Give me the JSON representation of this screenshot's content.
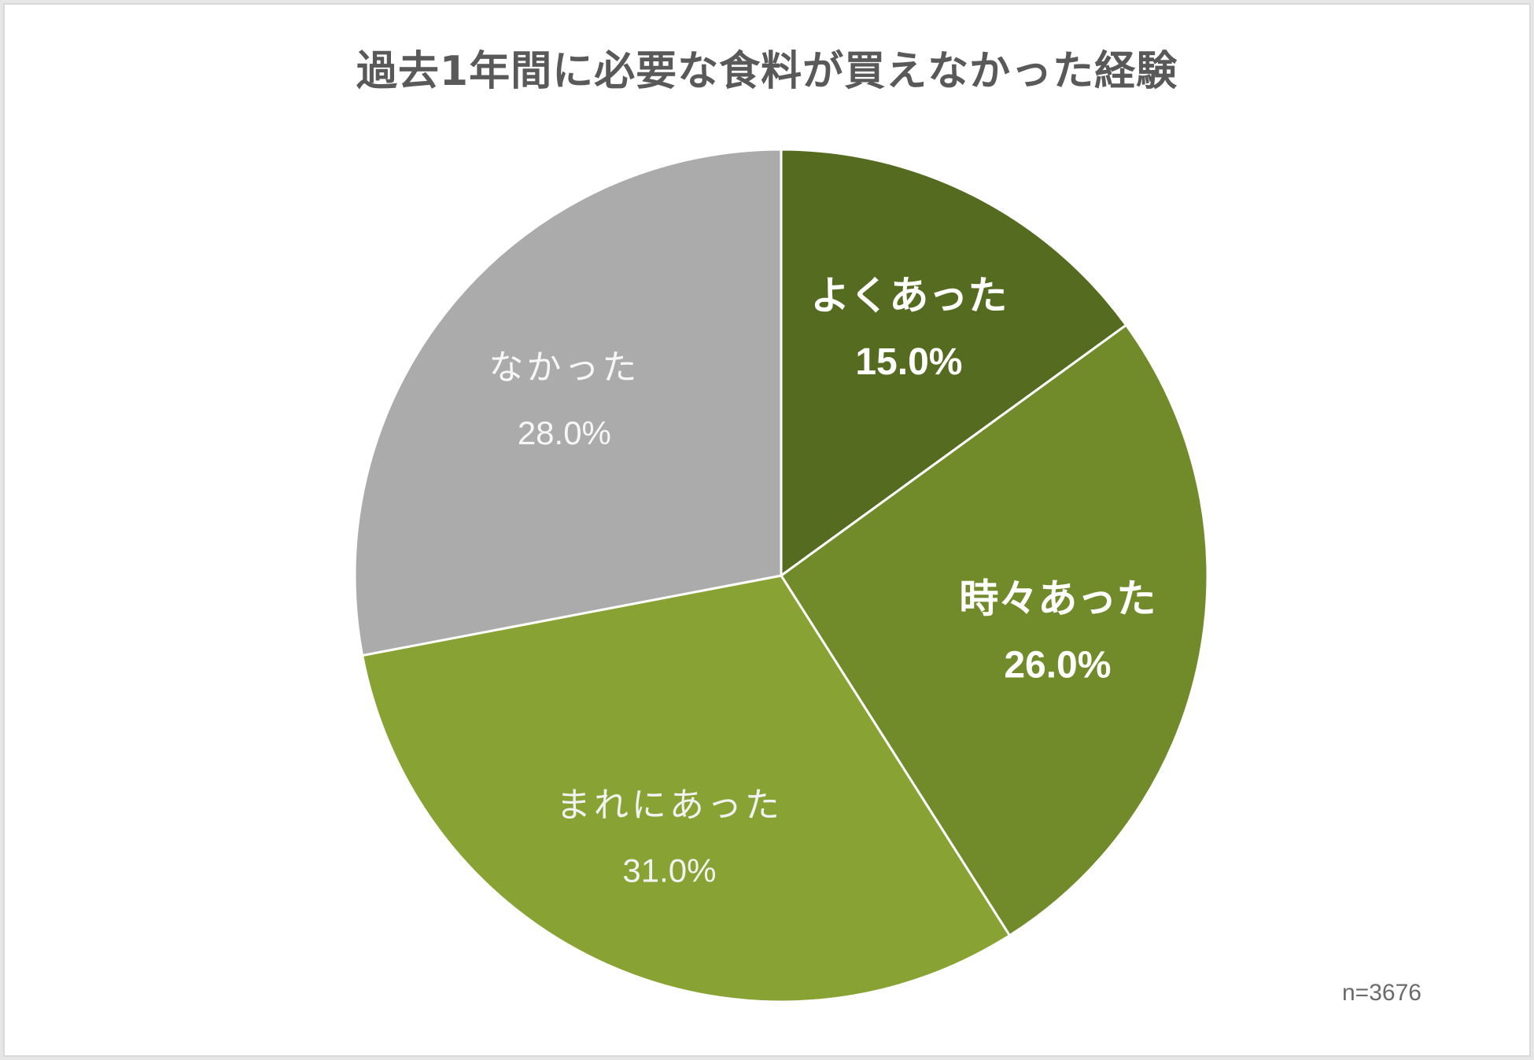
{
  "chart_data": {
    "type": "pie",
    "title": "過去1年間に必要な食料が買えなかった経験",
    "slices": [
      {
        "label": "よくあった",
        "value": 15.0,
        "value_label": "15.0%",
        "color": "#556b20",
        "text_color": "#ffffff",
        "bold": true
      },
      {
        "label": "時々あった",
        "value": 26.0,
        "value_label": "26.0%",
        "color": "#718b2a",
        "text_color": "#ffffff",
        "bold": true
      },
      {
        "label": "まれにあった",
        "value": 31.0,
        "value_label": "31.0%",
        "color": "#88a233",
        "text_color": "#f2f2f2",
        "bold": false
      },
      {
        "label": "なかった",
        "value": 28.0,
        "value_label": "28.0%",
        "color": "#ababab",
        "text_color": "#f7f7f7",
        "bold": false
      }
    ],
    "start_angle": "12 o'clock",
    "direction": "clockwise",
    "note": "n=3676"
  }
}
